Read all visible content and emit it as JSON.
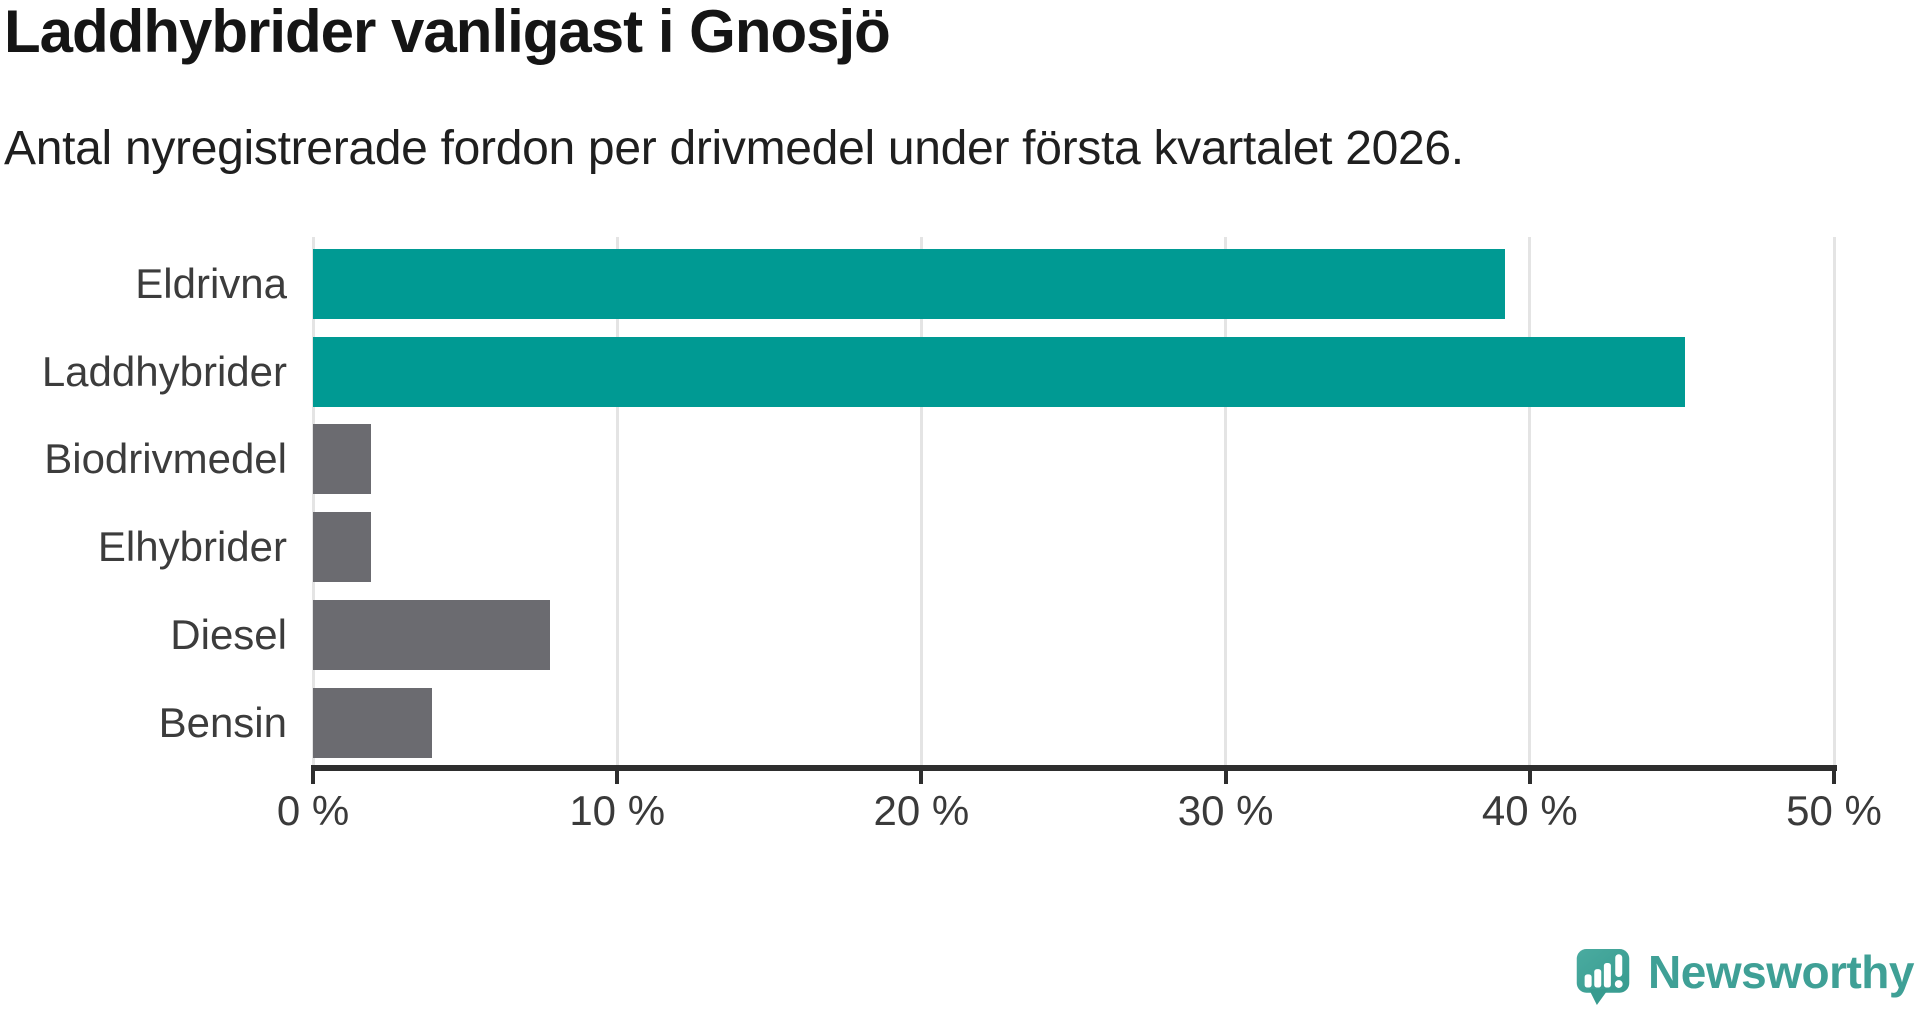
{
  "chart_data": {
    "type": "bar",
    "orientation": "horizontal",
    "title": "Laddhybrider vanligast i Gnosjö",
    "subtitle": "Antal nyregistrerade fordon per drivmedel under första kvartalet 2026.",
    "categories": [
      "Eldrivna",
      "Laddhybrider",
      "Biodrivmedel",
      "Elhybrider",
      "Diesel",
      "Bensin"
    ],
    "values": [
      39.2,
      45.1,
      1.9,
      1.9,
      7.8,
      3.9
    ],
    "unit": "%",
    "xlabel": "",
    "ylabel": "",
    "xlim": [
      0,
      50
    ],
    "x_ticks": [
      0,
      10,
      20,
      30,
      40,
      50
    ],
    "x_tick_labels": [
      "0 %",
      "10 %",
      "20 %",
      "30 %",
      "40 %",
      "50 %"
    ],
    "grid": "vertical-only",
    "legend": "none",
    "bar_colors": [
      "#009a93",
      "#009a93",
      "#6b6b70",
      "#6b6b70",
      "#6b6b70",
      "#6b6b70"
    ],
    "highlight_color": "#009a93",
    "default_color": "#6b6b70",
    "axis_color": "#2e2e2e",
    "gridline_color": "#e4e4e4",
    "label_color": "#3c3c3c"
  },
  "footer": {
    "logo_text": "Newsworthy",
    "logo_color": "#3fa096"
  }
}
